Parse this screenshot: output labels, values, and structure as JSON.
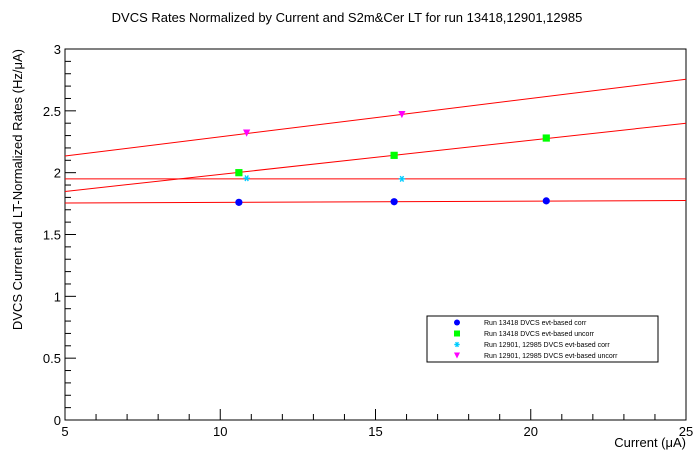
{
  "chart_data": {
    "type": "scatter",
    "title": "DVCS Rates Normalized by Current and S2m&Cer LT for run 13418,12901,12985",
    "xlabel": "Current (μA)",
    "ylabel": "DVCS Current and LT-Normalized Rates (Hz/μA)",
    "xlim": [
      5,
      25
    ],
    "ylim": [
      0,
      3
    ],
    "x_ticks": [
      5,
      10,
      15,
      20,
      25
    ],
    "x_tick_labels": [
      "5",
      "10",
      "15",
      "20",
      "25"
    ],
    "y_ticks": [
      0,
      0.5,
      1,
      1.5,
      2,
      2.5,
      3
    ],
    "y_tick_labels": [
      "0",
      "0.5",
      "1",
      "1.5",
      "2",
      "2.5",
      "3"
    ],
    "grid": false,
    "legend_position": "bottom-right",
    "fit_line_color": "#ff0000",
    "series": [
      {
        "name": "Run 13418 DVCS evt-based corr",
        "marker": "circle",
        "color": "#0000ff",
        "x": [
          10.6,
          15.6,
          20.5
        ],
        "y": [
          1.76,
          1.765,
          1.772
        ],
        "fit": [
          1.75,
          0.001
        ]
      },
      {
        "name": "Run 13418 DVCS evt-based uncorr",
        "marker": "square",
        "color": "#00ff00",
        "x": [
          10.6,
          15.6,
          20.5
        ],
        "y": [
          2.0,
          2.14,
          2.28
        ],
        "fit": [
          1.71,
          0.0276
        ]
      },
      {
        "name": "Run 12901, 12985 DVCS evt-based corr",
        "marker": "star",
        "color": "#00ccff",
        "x": [
          10.85,
          15.85
        ],
        "y": [
          1.955,
          1.95
        ],
        "fit": [
          1.95,
          0.0
        ]
      },
      {
        "name": "Run 12901, 12985 DVCS evt-based uncorr",
        "marker": "triangle-down",
        "color": "#ff00ff",
        "x": [
          10.85,
          15.85
        ],
        "y": [
          2.32,
          2.47
        ],
        "fit": [
          1.98,
          0.031
        ]
      }
    ]
  }
}
